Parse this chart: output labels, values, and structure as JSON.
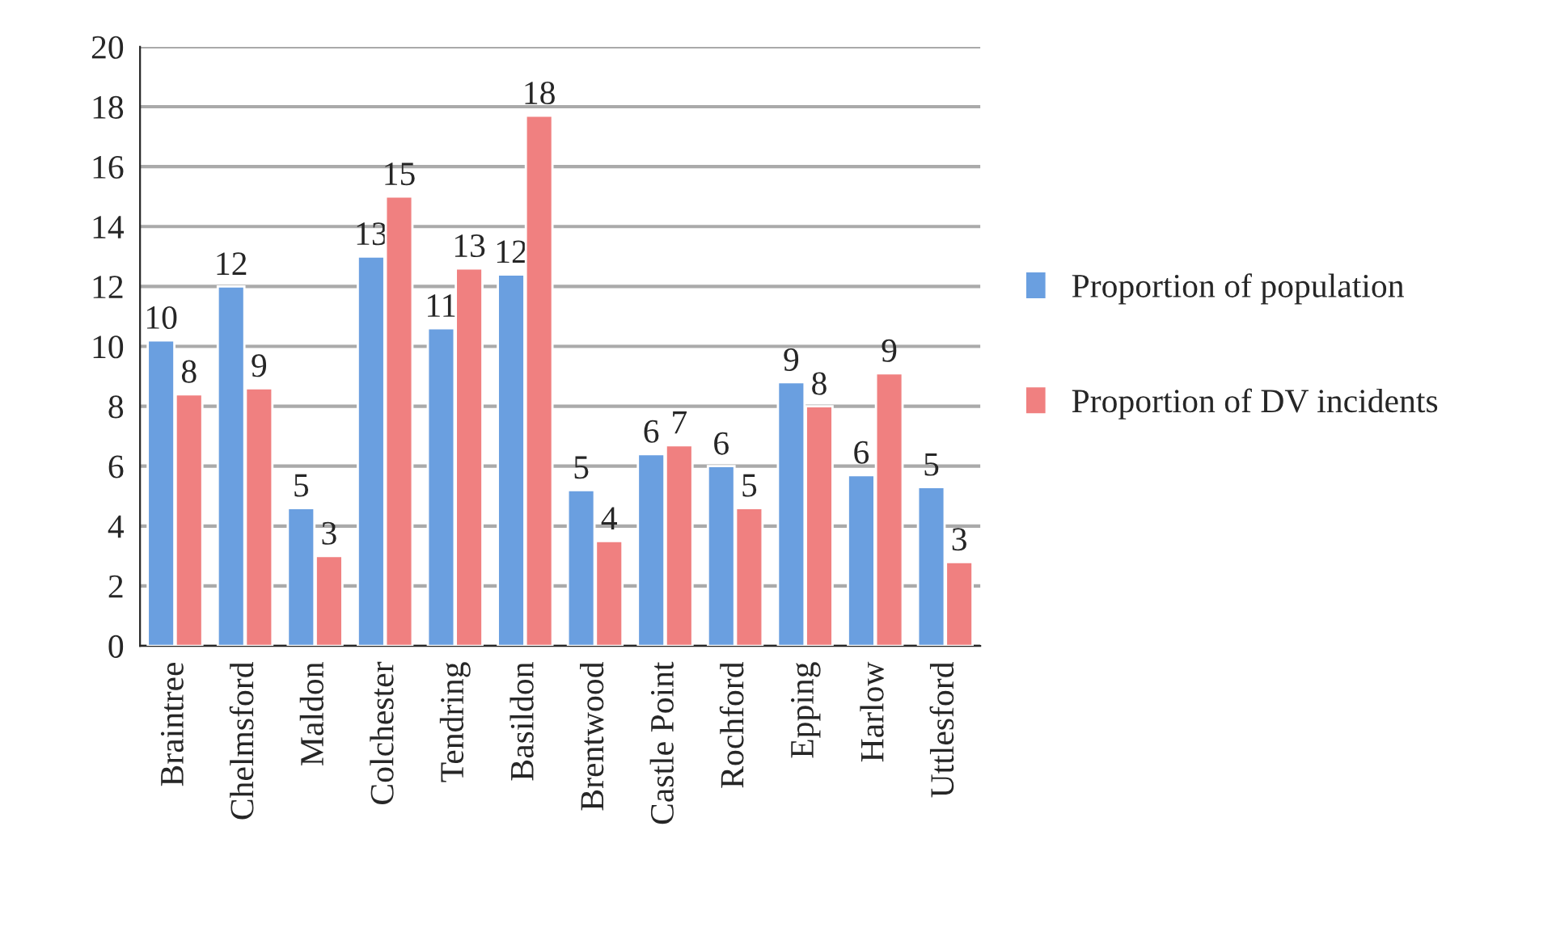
{
  "chart_data": {
    "type": "bar",
    "categories": [
      "Braintree",
      "Chelmsford",
      "Maldon",
      "Colchester",
      "Tendring",
      "Basildon",
      "Brentwood",
      "Castle Point",
      "Rochford",
      "Epping",
      "Harlow",
      "Uttlesford"
    ],
    "series": [
      {
        "name": "Proportion of population",
        "color": "#6a9fe0",
        "values": [
          10.2,
          12.0,
          4.6,
          13.0,
          10.6,
          12.4,
          5.2,
          6.4,
          6.0,
          8.8,
          5.7,
          5.3
        ],
        "value_labels": [
          "10",
          "12",
          "5",
          "13",
          "11",
          "12",
          "5",
          "6",
          "6",
          "9",
          "6",
          "5"
        ]
      },
      {
        "name": "Proportion of DV incidents",
        "color": "#f08080",
        "values": [
          8.4,
          8.6,
          3.0,
          15.0,
          12.6,
          17.7,
          3.5,
          6.7,
          4.6,
          8.0,
          9.1,
          2.8
        ],
        "value_labels": [
          "8",
          "9",
          "3",
          "15",
          "13",
          "18",
          "4",
          "7",
          "5",
          "8",
          "9",
          "3"
        ]
      }
    ],
    "ylim": [
      0,
      20
    ],
    "yticks": [
      0,
      2,
      4,
      6,
      8,
      10,
      12,
      14,
      16,
      18,
      20
    ],
    "grid": "y",
    "legend": "right"
  }
}
